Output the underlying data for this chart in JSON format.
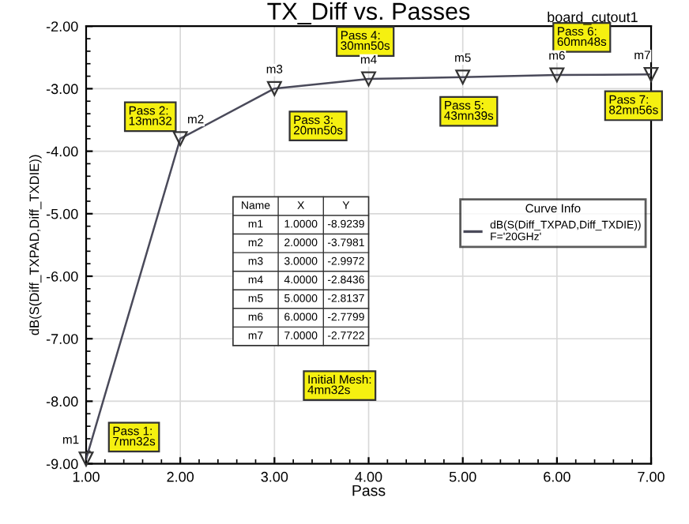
{
  "chart_data": {
    "type": "line",
    "title": "TX_Diff vs. Passes",
    "xlabel": "Pass",
    "ylabel": "dB(S(Diff_TXPAD,Diff_TXDIE))",
    "legend_title": "Curve Info",
    "x": [
      1,
      2,
      3,
      4,
      5,
      6,
      7
    ],
    "series": [
      {
        "name": "dB(S(Diff_TXPAD,Diff_TXDIE))\nF='20GHz'",
        "color": "#4a4a5a",
        "values": [
          -8.9239,
          -3.7981,
          -2.9972,
          -2.8436,
          -2.8137,
          -2.7799,
          -2.7722
        ]
      }
    ],
    "xlim": [
      1,
      7
    ],
    "xticks": [
      {
        "value": 1,
        "label": "1.00"
      },
      {
        "value": 2,
        "label": "2.00"
      },
      {
        "value": 3,
        "label": "3.00"
      },
      {
        "value": 4,
        "label": "4.00"
      },
      {
        "value": 5,
        "label": "5.00"
      },
      {
        "value": 6,
        "label": "6.00"
      },
      {
        "value": 7,
        "label": "7.00"
      }
    ],
    "ylim": [
      -9,
      -2
    ],
    "yticks": [
      {
        "value": -9,
        "label": "-9.00"
      },
      {
        "value": -8,
        "label": "-8.00"
      },
      {
        "value": -7,
        "label": "-7.00"
      },
      {
        "value": -6,
        "label": "-6.00"
      },
      {
        "value": -5,
        "label": "-5.00"
      },
      {
        "value": -4,
        "label": "-4.00"
      },
      {
        "value": -3,
        "label": "-3.00"
      },
      {
        "value": -2,
        "label": "-2.00"
      }
    ],
    "grid": true,
    "legend": "right",
    "marker": "triangle",
    "line_style": "solid",
    "annotations": [
      {
        "text": "Pass 1:\n7mn32s",
        "x": 1,
        "y": -8.9239
      },
      {
        "text": "Pass 2:\n13mn32",
        "x": 2,
        "y": -3.7981
      },
      {
        "text": "Pass 3:\n20mn50s",
        "x": 3,
        "y": -2.9972
      },
      {
        "text": "Pass 4:\n30mn50s",
        "x": 4,
        "y": -2.8436
      },
      {
        "text": "Pass 5:\n43mn39s",
        "x": 5,
        "y": -2.8137
      },
      {
        "text": "Pass 6:\n60mn48s",
        "x": 6,
        "y": -2.7799
      },
      {
        "text": "Pass 7:\n82mn56s",
        "x": 7,
        "y": -2.7722
      },
      {
        "text": "m1",
        "x": 1,
        "y": -8.9239
      },
      {
        "text": "m2",
        "x": 2,
        "y": -3.7981
      },
      {
        "text": "m3",
        "x": 3,
        "y": -2.9972
      },
      {
        "text": "m4",
        "x": 4,
        "y": -2.8436
      },
      {
        "text": "m5",
        "x": 5,
        "y": -2.8137
      },
      {
        "text": "m6",
        "x": 6,
        "y": -2.7799
      },
      {
        "text": "m7",
        "x": 7,
        "y": -2.7722
      },
      "Initial Mesh:\n4mn32s",
      "board_cutout1",
      "Name",
      "X",
      "Y",
      "1.0000",
      "2.0000",
      "3.0000",
      "4.0000",
      "5.0000",
      "6.0000",
      "7.0000",
      "-8.9239",
      "-3.7981",
      "-2.9972",
      "-2.8436",
      "-2.8137",
      "-2.7799",
      "-2.7722"
    ]
  }
}
